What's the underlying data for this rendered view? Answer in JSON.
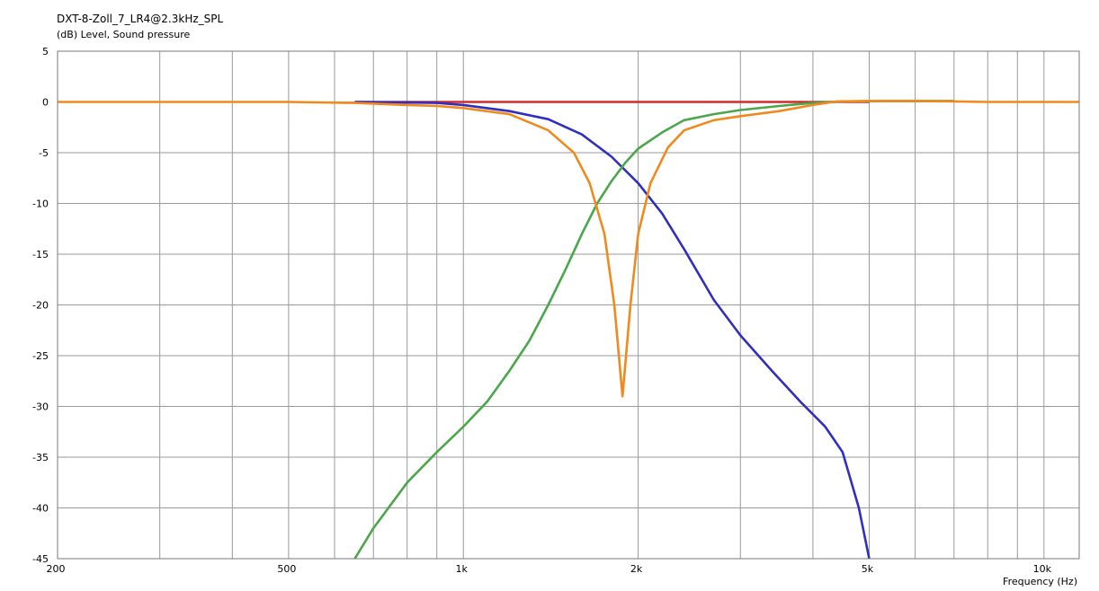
{
  "chart_data": {
    "type": "line",
    "title": "DXT-8-Zoll_7_LR4@2.3kHz_SPL",
    "ylabel": "(dB)  Level, Sound pressure",
    "xlabel": "Frequency  (Hz)",
    "xscale": "log",
    "xlim": [
      200,
      11500
    ],
    "ylim": [
      -45,
      5
    ],
    "yticks": [
      5,
      0,
      -5,
      -10,
      -15,
      -20,
      -25,
      -30,
      -35,
      -40,
      -45
    ],
    "xticks": [
      {
        "value": 200,
        "label": "200"
      },
      {
        "value": 500,
        "label": "500"
      },
      {
        "value": 1000,
        "label": "1k"
      },
      {
        "value": 2000,
        "label": "2k"
      },
      {
        "value": 5000,
        "label": "5k"
      },
      {
        "value": 10000,
        "label": "10k"
      }
    ],
    "grid": true,
    "legend": "none",
    "series": [
      {
        "color": "#d22a2a",
        "points": [
          [
            650,
            0
          ],
          [
            1000,
            0
          ],
          [
            2000,
            0
          ],
          [
            4000,
            0
          ],
          [
            5000,
            0
          ]
        ]
      },
      {
        "color": "#2f2fc0",
        "points": [
          [
            650,
            0
          ],
          [
            900,
            -0.1
          ],
          [
            1000,
            -0.3
          ],
          [
            1200,
            -0.9
          ],
          [
            1400,
            -1.7
          ],
          [
            1600,
            -3.2
          ],
          [
            1800,
            -5.4
          ],
          [
            2000,
            -8
          ],
          [
            2200,
            -11
          ],
          [
            2400,
            -14.5
          ],
          [
            2700,
            -19.5
          ],
          [
            3000,
            -23
          ],
          [
            3400,
            -26.5
          ],
          [
            3800,
            -29.5
          ],
          [
            4200,
            -32
          ],
          [
            4500,
            -34.5
          ],
          [
            4800,
            -40
          ],
          [
            5000,
            -45
          ]
        ]
      },
      {
        "color": "#4ca64c",
        "points": [
          [
            650,
            -45
          ],
          [
            700,
            -42
          ],
          [
            800,
            -37.5
          ],
          [
            900,
            -34.5
          ],
          [
            1000,
            -32
          ],
          [
            1100,
            -29.5
          ],
          [
            1200,
            -26.5
          ],
          [
            1300,
            -23.5
          ],
          [
            1400,
            -20
          ],
          [
            1500,
            -16.5
          ],
          [
            1600,
            -13
          ],
          [
            1700,
            -10
          ],
          [
            1800,
            -7.8
          ],
          [
            1900,
            -6
          ],
          [
            2000,
            -4.6
          ],
          [
            2200,
            -3
          ],
          [
            2400,
            -1.8
          ],
          [
            2700,
            -1.2
          ],
          [
            3000,
            -0.8
          ],
          [
            3500,
            -0.4
          ],
          [
            4000,
            -0.1
          ],
          [
            4500,
            0.05
          ],
          [
            5500,
            0.1
          ],
          [
            7000,
            0.1
          ]
        ]
      },
      {
        "color": "#f08a1e",
        "points": [
          [
            200,
            0
          ],
          [
            500,
            0
          ],
          [
            650,
            -0.1
          ],
          [
            800,
            -0.3
          ],
          [
            900,
            -0.4
          ],
          [
            1000,
            -0.6
          ],
          [
            1200,
            -1.2
          ],
          [
            1400,
            -2.8
          ],
          [
            1550,
            -5
          ],
          [
            1650,
            -8
          ],
          [
            1750,
            -13
          ],
          [
            1820,
            -20
          ],
          [
            1880,
            -29
          ],
          [
            1940,
            -20
          ],
          [
            2000,
            -13
          ],
          [
            2100,
            -8
          ],
          [
            2250,
            -4.5
          ],
          [
            2400,
            -2.8
          ],
          [
            2700,
            -1.8
          ],
          [
            3000,
            -1.4
          ],
          [
            3500,
            -0.9
          ],
          [
            4000,
            -0.3
          ],
          [
            4400,
            0.05
          ],
          [
            5000,
            0.1
          ],
          [
            6000,
            0.1
          ],
          [
            7000,
            0.05
          ],
          [
            8000,
            0
          ],
          [
            11500,
            0
          ]
        ]
      }
    ]
  }
}
